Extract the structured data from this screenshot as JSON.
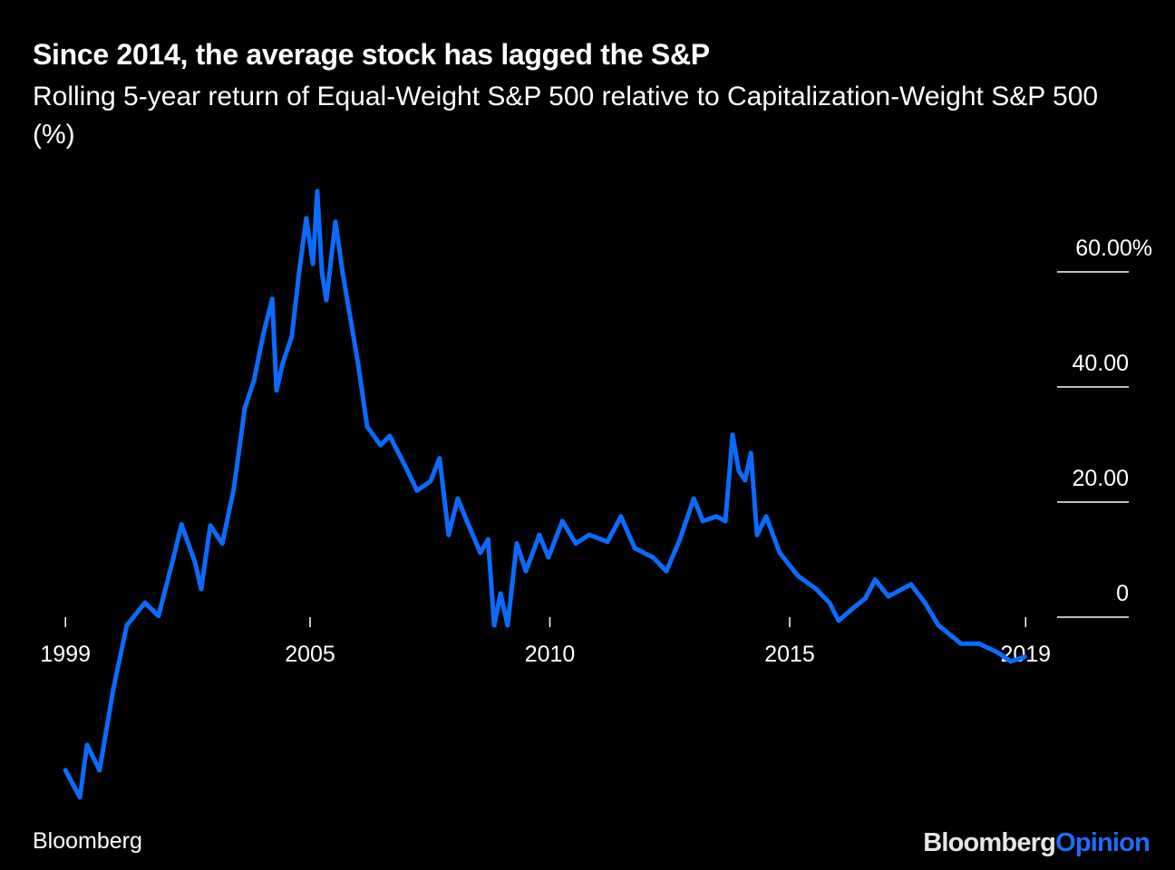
{
  "header": {
    "title": "Since 2014, the average stock has lagged the S&P",
    "subtitle": "Rolling 5-year return of Equal-Weight S&P 500 relative to Capitalization-Weight S&P 500 (%)"
  },
  "footer": {
    "source": "Bloomberg",
    "logo_part1": "Bloomberg",
    "logo_part2": "Opinion"
  },
  "colors": {
    "line": "#0a6cff",
    "background": "#000000",
    "text": "#ffffff"
  },
  "chart_data": {
    "type": "line",
    "title": "Since 2014, the average stock has lagged the S&P",
    "ylabel": "%",
    "ylim": [
      -32,
      75
    ],
    "y_ticks": [
      {
        "label": "60.00%",
        "value": 60
      },
      {
        "label": "40.00",
        "value": 40
      },
      {
        "label": "20.00",
        "value": 20
      },
      {
        "label": "0",
        "value": 0
      }
    ],
    "x_ticks": [
      {
        "label": "1999",
        "value": 1999.9
      },
      {
        "label": "2005",
        "value": 2005.0
      },
      {
        "label": "2010",
        "value": 2010.0
      },
      {
        "label": "2015",
        "value": 2015.0
      },
      {
        "label": "2019",
        "value": 2019.92
      }
    ],
    "series": [
      {
        "name": "Equal-Weight vs Cap-Weight S&P 500, rolling 5-yr relative return",
        "x": [
          1999.9,
          2000.2,
          2000.35,
          2000.61,
          2000.9,
          2001.18,
          2001.56,
          2001.84,
          2002.13,
          2002.32,
          2002.6,
          2002.73,
          2002.92,
          2003.17,
          2003.41,
          2003.64,
          2003.83,
          2004.02,
          2004.21,
          2004.3,
          2004.43,
          2004.62,
          2004.77,
          2004.92,
          2005.06,
          2005.15,
          2005.25,
          2005.34,
          2005.53,
          2005.68,
          2005.81,
          2006.0,
          2006.19,
          2006.47,
          2006.66,
          2006.95,
          2007.23,
          2007.51,
          2007.7,
          2007.89,
          2008.08,
          2008.27,
          2008.55,
          2008.71,
          2008.84,
          2008.97,
          2009.12,
          2009.31,
          2009.5,
          2009.78,
          2009.97,
          2010.26,
          2010.54,
          2010.82,
          2011.2,
          2011.48,
          2011.77,
          2012.15,
          2012.43,
          2012.71,
          2013.0,
          2013.19,
          2013.47,
          2013.66,
          2013.81,
          2013.94,
          2014.07,
          2014.19,
          2014.32,
          2014.51,
          2014.79,
          2015.17,
          2015.55,
          2015.83,
          2016.02,
          2016.3,
          2016.58,
          2016.78,
          2017.06,
          2017.53,
          2017.82,
          2018.1,
          2018.57,
          2018.95,
          2019.33,
          2019.61,
          2019.9
        ],
        "y": [
          -26.6,
          -31.3,
          -22.2,
          -26.6,
          -12.4,
          -1.4,
          2.5,
          0.2,
          9.6,
          16.1,
          9.6,
          4.9,
          15.9,
          12.8,
          22.3,
          36.4,
          41.1,
          49.0,
          55.3,
          39.4,
          44.1,
          48.8,
          59.8,
          69.3,
          61.4,
          74.0,
          59.8,
          55.1,
          68.7,
          59.8,
          53.5,
          44.1,
          33.1,
          29.9,
          31.5,
          26.8,
          22.0,
          23.6,
          27.6,
          14.3,
          20.6,
          16.7,
          11.2,
          13.5,
          -1.4,
          4.1,
          -1.4,
          12.8,
          8.0,
          14.3,
          10.4,
          16.7,
          12.8,
          14.3,
          13.1,
          17.5,
          12.0,
          10.4,
          8.0,
          13.5,
          20.6,
          16.7,
          17.5,
          16.7,
          31.7,
          25.4,
          23.8,
          28.5,
          14.3,
          17.5,
          11.2,
          7.2,
          4.9,
          2.5,
          -0.6,
          1.4,
          3.3,
          6.5,
          3.6,
          5.7,
          2.5,
          -1.4,
          -4.6,
          -4.6,
          -6.1,
          -7.7,
          -6.9
        ]
      }
    ]
  }
}
